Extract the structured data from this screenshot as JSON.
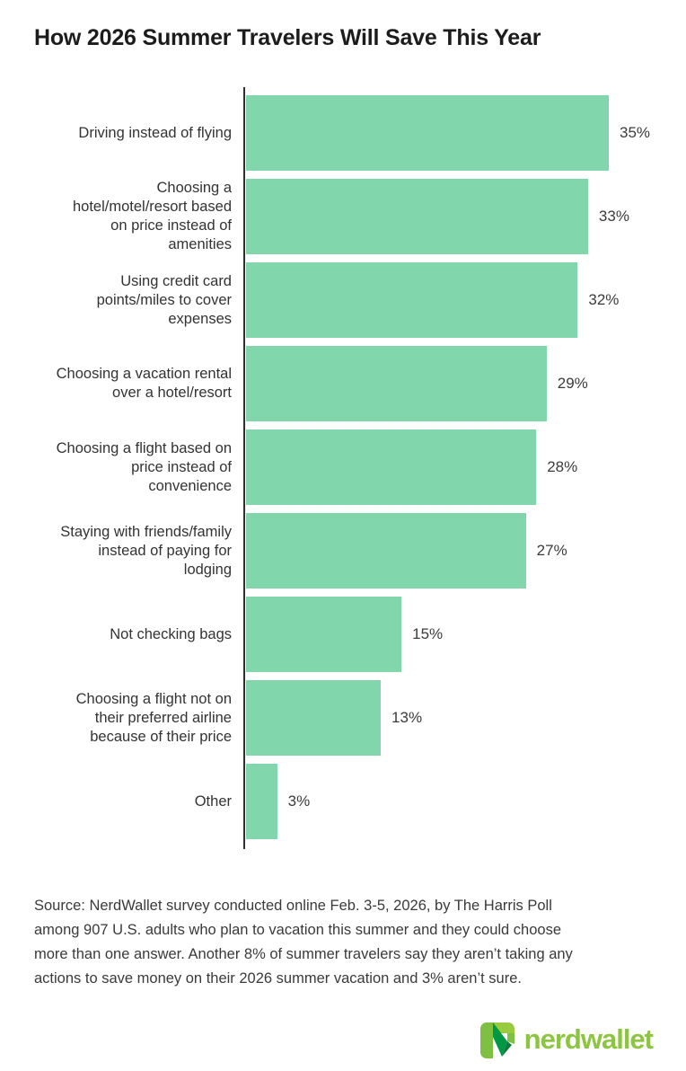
{
  "title": "How 2026 Summer Travelers Will Save This Year",
  "chart_data": {
    "type": "bar",
    "orientation": "horizontal",
    "title": "How 2026 Summer Travelers Will Save This Year",
    "categories": [
      "Driving instead of flying",
      "Choosing a\nhotel/motel/resort based\non price instead of\namenities",
      "Using credit card\npoints/miles to cover\nexpenses",
      "Choosing a vacation rental\nover a hotel/resort",
      "Choosing a flight based on\nprice instead of\nconvenience",
      "Staying with friends/family\ninstead of paying for\nlodging",
      "Not checking bags",
      "Choosing a flight not on\ntheir preferred airline\nbecause of their price",
      "Other"
    ],
    "values": [
      35,
      33,
      32,
      29,
      28,
      27,
      15,
      13,
      3
    ],
    "value_labels": [
      "35%",
      "33%",
      "32%",
      "29%",
      "28%",
      "27%",
      "15%",
      "13%",
      "3%"
    ],
    "xlabel": "",
    "ylabel": "",
    "xlim": [
      0,
      35
    ],
    "grid": false,
    "legend": false,
    "bar_color": "#81d6ac",
    "axis_color": "#2e2e2e"
  },
  "source_note": "Source: NerdWallet survey conducted online Feb. 3-5, 2026, by The Harris Poll\namong 907 U.S. adults who plan to vacation this summer and they could choose\nmore than one answer. Another 8% of summer travelers say they aren’t taking any\nactions to save money on their 2026 summer vacation and 3% aren’t sure.",
  "branding": {
    "logo_text": "nerdwallet",
    "logo_text_color": "#8cc540",
    "logo_mark_light_green": "#7ec142",
    "logo_mark_top_green": "#99cb3e",
    "logo_mark_dark_green": "#009845",
    "logo_mark_shadow_green": "#0b7a3e"
  }
}
